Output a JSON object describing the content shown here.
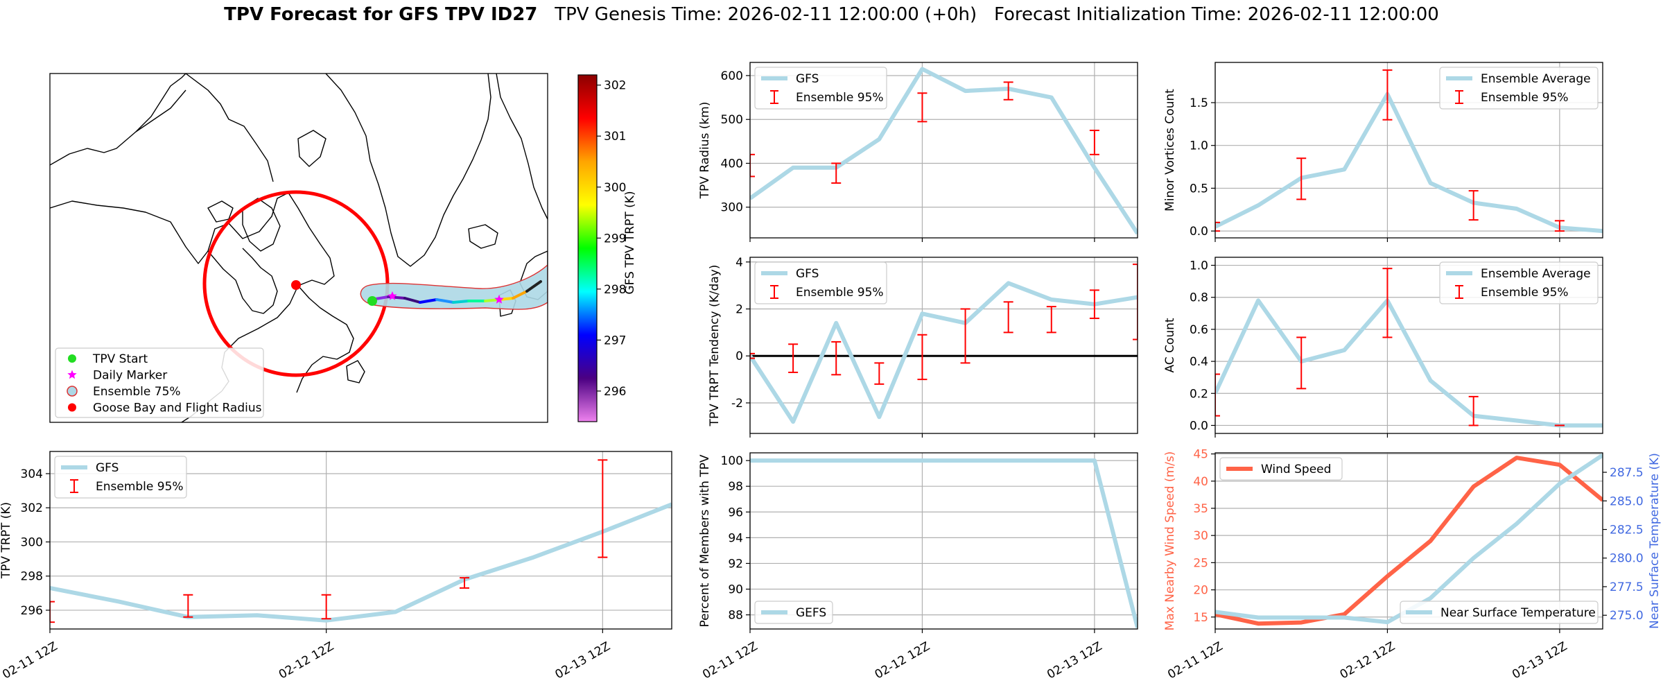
{
  "title": {
    "bold": "TPV Forecast for GFS TPV ID27",
    "genesis": "TPV Genesis Time: 2026-02-11 12:00:00 (+0h)",
    "init": "Forecast Initialization Time: 2026-02-11 12:00:00"
  },
  "colors": {
    "series": "#add8e6",
    "errorbar": "#ff0000",
    "wind": "#ff6347",
    "temp_axis": "#4169e1",
    "grid": "#b0b0b0",
    "zero_line": "#000000",
    "map_circle": "#ff0000",
    "ensemble_fill": "#add8e6"
  },
  "chart_data": [
    {
      "id": "map",
      "type": "map",
      "colorbar": {
        "label": "GFS TPV TRPT (K)",
        "range": [
          295.4,
          302.2
        ],
        "ticks": [
          "296",
          "297",
          "298",
          "299",
          "300",
          "301",
          "302"
        ],
        "colors": [
          "#ee82ee",
          "#4b0082",
          "#0000ff",
          "#00ffff",
          "#00ff00",
          "#ffff00",
          "#ffa500",
          "#ff0000",
          "#8b0000"
        ]
      },
      "legend": {
        "position": "lower-left",
        "items": [
          {
            "label": "TPV Start",
            "marker": "green-dot"
          },
          {
            "label": "Daily Marker",
            "marker": "magenta-star"
          },
          {
            "label": "Ensemble 75%",
            "marker": "lightblue-patch"
          },
          {
            "label": "Goose Bay and Flight Radius",
            "marker": "red-dot"
          }
        ]
      }
    },
    {
      "id": "trpt",
      "type": "line",
      "x": [
        "02-11 12Z",
        "02-11 18Z",
        "02-12 00Z",
        "02-12 06Z",
        "02-12 12Z",
        "02-12 18Z",
        "02-13 00Z",
        "02-13 06Z",
        "02-13 12Z",
        "02-13 18Z"
      ],
      "xtick_labels": [
        "02-11 12Z",
        "02-12 12Z",
        "02-13 12Z"
      ],
      "series": [
        {
          "name": "GFS",
          "values": [
            297.3,
            296.5,
            295.6,
            295.7,
            295.4,
            295.9,
            297.8,
            299.1,
            300.6,
            302.2
          ]
        }
      ],
      "errorbars": [
        {
          "x": 0,
          "lo": 295.3,
          "hi": 296.5
        },
        {
          "x": 2,
          "lo": 295.6,
          "hi": 296.9
        },
        {
          "x": 4,
          "lo": 295.5,
          "hi": 296.9
        },
        {
          "x": 6,
          "lo": 297.3,
          "hi": 297.9
        },
        {
          "x": 8,
          "lo": 299.1,
          "hi": 304.8
        }
      ],
      "errorbar_name": "Ensemble 95%",
      "ylabel": "TPV TRPT (K)",
      "ylim": [
        294.9,
        305.3
      ],
      "yticks": [
        296,
        298,
        300,
        302,
        304
      ],
      "grid": true,
      "legend": "upper-left"
    },
    {
      "id": "radius",
      "type": "line",
      "x": [
        0,
        1,
        2,
        3,
        4,
        5,
        6,
        7,
        8,
        9
      ],
      "series": [
        {
          "name": "GFS",
          "values": [
            320,
            390,
            390,
            455,
            615,
            565,
            570,
            550,
            390,
            240
          ]
        }
      ],
      "errorbars": [
        {
          "x": 0,
          "lo": 370,
          "hi": 420
        },
        {
          "x": 2,
          "lo": 355,
          "hi": 400
        },
        {
          "x": 4,
          "lo": 495,
          "hi": 560
        },
        {
          "x": 6,
          "lo": 545,
          "hi": 585
        },
        {
          "x": 8,
          "lo": 420,
          "hi": 475
        }
      ],
      "errorbar_name": "Ensemble 95%",
      "ylabel": "TPV Radius (km)",
      "ylim": [
        230,
        630
      ],
      "yticks": [
        300,
        400,
        500,
        600
      ],
      "grid": true,
      "legend": "upper-left"
    },
    {
      "id": "tendency",
      "type": "line",
      "x": [
        0,
        1,
        2,
        3,
        4,
        5,
        6,
        7,
        8,
        9
      ],
      "series": [
        {
          "name": "GFS",
          "values": [
            0.0,
            -2.8,
            1.4,
            -2.6,
            1.8,
            1.4,
            3.1,
            2.4,
            2.2,
            2.5
          ]
        }
      ],
      "errorbars": [
        {
          "x": 0,
          "lo": -0.1,
          "hi": 0.1
        },
        {
          "x": 1,
          "lo": -0.7,
          "hi": 0.5
        },
        {
          "x": 2,
          "lo": -0.8,
          "hi": 0.6
        },
        {
          "x": 3,
          "lo": -1.2,
          "hi": -0.3
        },
        {
          "x": 4,
          "lo": -1.0,
          "hi": 0.9
        },
        {
          "x": 5,
          "lo": -0.3,
          "hi": 2.0
        },
        {
          "x": 6,
          "lo": 1.0,
          "hi": 2.3
        },
        {
          "x": 7,
          "lo": 1.0,
          "hi": 2.1
        },
        {
          "x": 8,
          "lo": 1.6,
          "hi": 2.8
        },
        {
          "x": 9,
          "lo": 0.7,
          "hi": 3.9
        }
      ],
      "errorbar_name": "Ensemble 95%",
      "ylabel": "TPV TRPT Tendency (K/day)",
      "ylim": [
        -3.3,
        4.2
      ],
      "yticks": [
        -2,
        0,
        2,
        4
      ],
      "zero_line": true,
      "grid": true,
      "legend": "upper-left"
    },
    {
      "id": "percent",
      "type": "line",
      "x": [
        0,
        1,
        2,
        3,
        4,
        5,
        6,
        7,
        8,
        9
      ],
      "xtick_labels": [
        "02-11 12Z",
        "02-12 12Z",
        "02-13 12Z"
      ],
      "series": [
        {
          "name": "GEFS",
          "values": [
            100,
            100,
            100,
            100,
            100,
            100,
            100,
            100,
            100,
            87
          ]
        }
      ],
      "ylabel": "Percent of Members with TPV",
      "ylim": [
        86.9,
        100.6
      ],
      "yticks": [
        88,
        90,
        92,
        94,
        96,
        98,
        100
      ],
      "grid": true,
      "legend": "lower-left"
    },
    {
      "id": "minor",
      "type": "line",
      "x": [
        0,
        1,
        2,
        3,
        4,
        5,
        6,
        7,
        8,
        9
      ],
      "series": [
        {
          "name": "Ensemble Average",
          "values": [
            0.05,
            0.3,
            0.62,
            0.72,
            1.6,
            0.56,
            0.33,
            0.26,
            0.04,
            0.0
          ]
        }
      ],
      "errorbars": [
        {
          "x": 0,
          "lo": 0.0,
          "hi": 0.1
        },
        {
          "x": 2,
          "lo": 0.37,
          "hi": 0.85
        },
        {
          "x": 4,
          "lo": 1.3,
          "hi": 1.88
        },
        {
          "x": 6,
          "lo": 0.13,
          "hi": 0.47
        },
        {
          "x": 8,
          "lo": 0.0,
          "hi": 0.12
        }
      ],
      "errorbar_name": "Ensemble 95%",
      "ylabel": "Minor Vortices Count",
      "ylim": [
        -0.08,
        1.97
      ],
      "yticks": [
        0.0,
        0.5,
        1.0,
        1.5
      ],
      "ytick_labels": [
        "0.0",
        "0.5",
        "1.0",
        "1.5"
      ],
      "grid": true,
      "legend": "upper-right"
    },
    {
      "id": "ac",
      "type": "line",
      "x": [
        0,
        1,
        2,
        3,
        4,
        5,
        6,
        7,
        8,
        9
      ],
      "series": [
        {
          "name": "Ensemble Average",
          "values": [
            0.2,
            0.78,
            0.4,
            0.47,
            0.78,
            0.28,
            0.06,
            0.03,
            0.0,
            0.0
          ]
        }
      ],
      "errorbars": [
        {
          "x": 0,
          "lo": 0.06,
          "hi": 0.32
        },
        {
          "x": 2,
          "lo": 0.23,
          "hi": 0.55
        },
        {
          "x": 4,
          "lo": 0.55,
          "hi": 0.98
        },
        {
          "x": 6,
          "lo": 0.0,
          "hi": 0.18
        },
        {
          "x": 8,
          "lo": 0.0,
          "hi": 0.0
        }
      ],
      "errorbar_name": "Ensemble 95%",
      "ylabel": "AC Count",
      "ylim": [
        -0.05,
        1.05
      ],
      "yticks": [
        0.0,
        0.2,
        0.4,
        0.6,
        0.8,
        1.0
      ],
      "ytick_labels": [
        "0.0",
        "0.2",
        "0.4",
        "0.6",
        "0.8",
        "1.0"
      ],
      "grid": true,
      "legend": "upper-right"
    },
    {
      "id": "wind",
      "type": "line",
      "x": [
        0,
        1,
        2,
        3,
        4,
        5,
        6,
        7,
        8,
        9
      ],
      "xtick_labels": [
        "02-11 12Z",
        "02-12 12Z",
        "02-13 12Z"
      ],
      "series": [
        {
          "name": "Wind Speed",
          "axis": "left",
          "values": [
            15.5,
            13.8,
            14.0,
            15.5,
            22.5,
            29.0,
            39.0,
            44.3,
            43.0,
            36.5
          ]
        },
        {
          "name": "Near Surface Temperature",
          "axis": "right",
          "values": [
            275.3,
            274.8,
            274.8,
            274.8,
            274.4,
            276.5,
            280.0,
            283.0,
            286.5,
            289.0
          ]
        }
      ],
      "ylabel": "Max Nearby Wind Speed (m/s)",
      "ylabel_right": "Near Surface Temperature (K)",
      "ylim": [
        12.8,
        45.2
      ],
      "yticks": [
        15,
        20,
        25,
        30,
        35,
        40,
        45
      ],
      "ylim_right": [
        273.8,
        289.2
      ],
      "yticks_right": [
        275.0,
        277.5,
        280.0,
        282.5,
        285.0,
        287.5
      ],
      "ytick_labels_right": [
        "275.0",
        "277.5",
        "280.0",
        "282.5",
        "285.0",
        "287.5"
      ],
      "grid": true,
      "legend": "upper-left / lower-right"
    }
  ]
}
